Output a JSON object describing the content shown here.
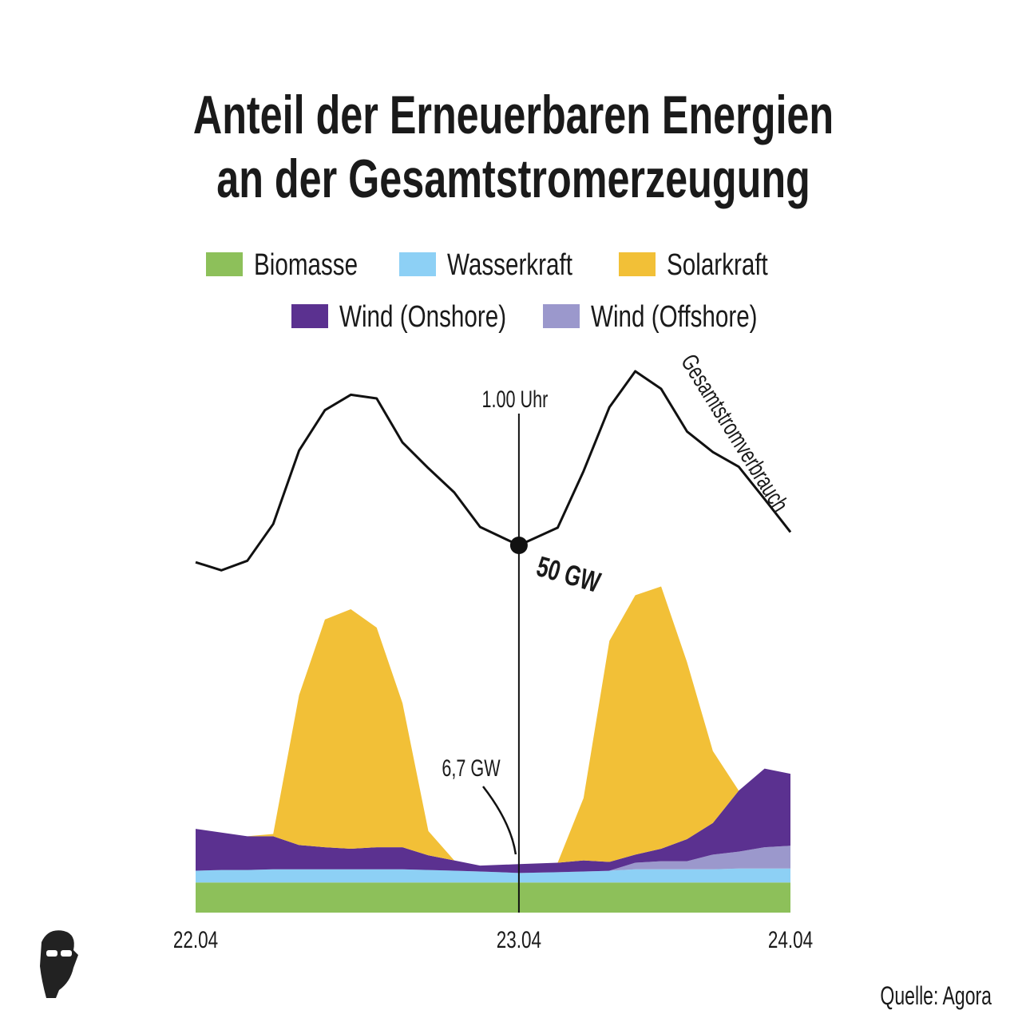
{
  "chart_data": {
    "type": "stacked_area",
    "title": [
      "Anteil der Erneuerbaren Energien",
      "an der Gesamtstromerzeugung"
    ],
    "x": [
      0,
      2,
      4,
      6,
      8,
      10,
      12,
      14,
      16,
      18,
      20,
      22,
      25,
      28,
      30,
      32,
      34,
      36,
      38,
      40,
      42,
      44,
      46
    ],
    "xlim": [
      0,
      46
    ],
    "xticks": [
      {
        "value": 0,
        "label": "22.04"
      },
      {
        "value": 25,
        "label": "23.04"
      },
      {
        "value": 46,
        "label": "24.04"
      }
    ],
    "series": [
      {
        "name": "Biomasse",
        "color": "#8dc05a",
        "values": [
          4.1,
          4.1,
          4.1,
          4.1,
          4.1,
          4.1,
          4.1,
          4.1,
          4.1,
          4.1,
          4.1,
          4.1,
          4.1,
          4.1,
          4.1,
          4.1,
          4.1,
          4.1,
          4.1,
          4.1,
          4.1,
          4.1,
          4.1
        ]
      },
      {
        "name": "Wasserkraft",
        "color": "#8dd0f5",
        "values": [
          1.6,
          1.7,
          1.7,
          1.8,
          1.8,
          1.8,
          1.8,
          1.8,
          1.8,
          1.7,
          1.6,
          1.5,
          1.3,
          1.4,
          1.5,
          1.6,
          1.8,
          1.8,
          1.8,
          1.8,
          1.9,
          1.9,
          1.9
        ]
      },
      {
        "name": "Solarkraft",
        "color": "#f2c037",
        "values": [
          0,
          0,
          0,
          0.3,
          20.4,
          31.0,
          32.6,
          29.9,
          19.6,
          3.3,
          0,
          0,
          0,
          0,
          8.5,
          30.1,
          35.3,
          35.7,
          24.1,
          9.8,
          0,
          0,
          0
        ]
      },
      {
        "name": "Wind (Onshore)",
        "color": "#5b3190",
        "values": [
          5.7,
          5.1,
          4.6,
          4.5,
          3.3,
          3.0,
          2.8,
          3.0,
          3.0,
          2.0,
          1.4,
          0.8,
          1.2,
          1.3,
          1.5,
          1.2,
          1.1,
          1.7,
          3.0,
          4.3,
          8.3,
          10.7,
          9.8
        ]
      },
      {
        "name": "Wind (Offshore)",
        "color": "#9b98cc",
        "values": [
          0,
          0,
          0,
          0,
          0,
          0,
          0,
          0,
          0,
          0,
          0,
          0,
          0,
          0,
          0,
          0,
          0.9,
          1.1,
          1.1,
          2.0,
          2.3,
          2.9,
          3.1
        ]
      }
    ],
    "stack_order": [
      0,
      1,
      4,
      3,
      2
    ],
    "line_series": {
      "name": "Gesamtstromverbrauch",
      "color": "#111111",
      "values": [
        47.7,
        46.6,
        47.9,
        52.9,
        62.9,
        68.4,
        70.5,
        70.0,
        64.0,
        60.5,
        57.2,
        52.5,
        50.0,
        52.4,
        60.1,
        68.8,
        73.7,
        71.3,
        65.5,
        62.7,
        60.7,
        56.3,
        51.8
      ]
    },
    "highlight": {
      "x": 25,
      "label": "1.00 Uhr",
      "consumption_label": "50 GW",
      "renewables_label": "6,7 GW"
    },
    "source": "Quelle: Agora"
  }
}
